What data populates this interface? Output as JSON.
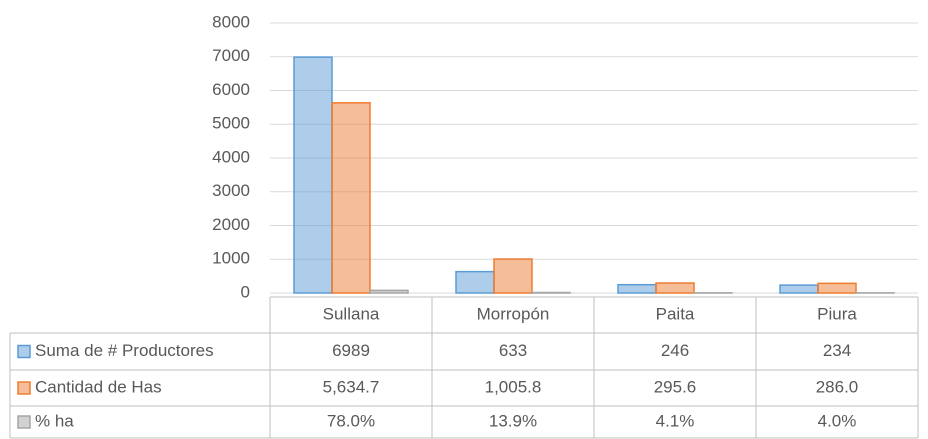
{
  "chart_data": {
    "type": "bar",
    "categories": [
      "Sullana",
      "Morropón",
      "Paita",
      "Piura"
    ],
    "series": [
      {
        "name": "Suma de # Productores",
        "color": "#5b9bd5",
        "values": [
          6989,
          633,
          246,
          234
        ]
      },
      {
        "name": "Cantidad de Has",
        "color": "#ed7d31",
        "values": [
          5634.7,
          1005.8,
          295.6,
          286.0
        ],
        "value_labels": [
          "5,634.7",
          "1,005.8",
          "295.6",
          "286.0"
        ]
      },
      {
        "name": "% ha",
        "color": "#a5a5a5",
        "values": [
          78.0,
          13.9,
          4.1,
          4.0
        ],
        "value_labels": [
          "78.0%",
          "13.9%",
          "4.1%",
          "4.0%"
        ]
      }
    ],
    "ylim": [
      0,
      8000
    ],
    "yticks": [
      0,
      1000,
      2000,
      3000,
      4000,
      5000,
      6000,
      7000,
      8000
    ],
    "grid": true
  }
}
